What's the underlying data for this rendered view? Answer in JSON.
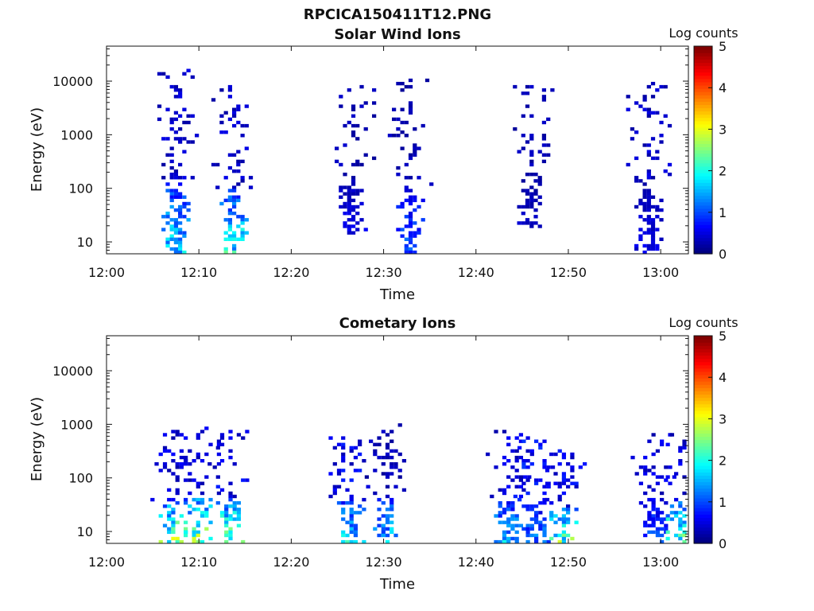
{
  "figure": {
    "title": "RPCICA150411T12.PNG"
  },
  "chart_data": [
    {
      "type": "heatmap",
      "title": "Solar Wind Ions",
      "xlabel": "Time",
      "ylabel": "Energy (eV)",
      "yscale": "log",
      "xlim": [
        "12:00",
        "13:03"
      ],
      "ylim": [
        6,
        45000
      ],
      "x_ticks": [
        "12:00",
        "12:10",
        "12:20",
        "12:30",
        "12:40",
        "12:50",
        "13:00"
      ],
      "y_ticks": [
        "10",
        "100",
        "1000",
        "10000"
      ],
      "colorbar": {
        "label": "Log counts",
        "range": [
          0,
          5
        ],
        "ticks": [
          "0",
          "1",
          "2",
          "3",
          "4",
          "5"
        ],
        "colormap": "jet"
      },
      "bursts": [
        {
          "t_min": 7.3,
          "e_min": 6.5,
          "e_max": 18000,
          "lo_level": 2.0,
          "sparse_level": 0.4
        },
        {
          "t_min": 13.6,
          "e_min": 6.5,
          "e_max": 9000,
          "lo_level": 2.2,
          "sparse_level": 0.4
        },
        {
          "t_min": 26.5,
          "e_min": 15,
          "e_max": 9000,
          "lo_level": 0.6,
          "sparse_level": 0.3
        },
        {
          "t_min": 32.7,
          "e_min": 6.5,
          "e_max": 12000,
          "lo_level": 1.2,
          "sparse_level": 0.3
        },
        {
          "t_min": 45.8,
          "e_min": 20,
          "e_max": 9000,
          "lo_level": 0.4,
          "sparse_level": 0.3
        },
        {
          "t_min": 58.5,
          "e_min": 6.5,
          "e_max": 10000,
          "lo_level": 0.6,
          "sparse_level": 0.4
        }
      ]
    },
    {
      "type": "heatmap",
      "title": "Cometary Ions",
      "xlabel": "Time",
      "ylabel": "Energy (eV)",
      "yscale": "log",
      "xlim": [
        "12:00",
        "13:03"
      ],
      "ylim": [
        6,
        45000
      ],
      "x_ticks": [
        "12:00",
        "12:10",
        "12:20",
        "12:30",
        "12:40",
        "12:50",
        "13:00"
      ],
      "y_ticks": [
        "10",
        "100",
        "1000",
        "10000"
      ],
      "colorbar": {
        "label": "Log counts",
        "range": [
          0,
          5
        ],
        "ticks": [
          "0",
          "1",
          "2",
          "3",
          "4",
          "5"
        ],
        "colormap": "jet"
      },
      "bursts": [
        {
          "t_min": 7.0,
          "e_min": 6.5,
          "e_max": 800,
          "lo_level": 2.9,
          "sparse_level": 0.5
        },
        {
          "t_min": 9.7,
          "e_min": 6.5,
          "e_max": 1000,
          "lo_level": 3.0,
          "sparse_level": 0.5
        },
        {
          "t_min": 13.2,
          "e_min": 6.5,
          "e_max": 900,
          "lo_level": 2.8,
          "sparse_level": 0.6
        },
        {
          "t_min": 26.3,
          "e_min": 6.5,
          "e_max": 700,
          "lo_level": 2.0,
          "sparse_level": 0.6
        },
        {
          "t_min": 30.2,
          "e_min": 6.5,
          "e_max": 1100,
          "lo_level": 1.9,
          "sparse_level": 0.3
        },
        {
          "t_min": 43.3,
          "e_min": 6.5,
          "e_max": 800,
          "lo_level": 1.8,
          "sparse_level": 0.5
        },
        {
          "t_min": 46.3,
          "e_min": 6.5,
          "e_max": 600,
          "lo_level": 1.4,
          "sparse_level": 0.7
        },
        {
          "t_min": 49.3,
          "e_min": 6.5,
          "e_max": 350,
          "lo_level": 2.6,
          "sparse_level": 0.6
        },
        {
          "t_min": 59.0,
          "e_min": 6.5,
          "e_max": 900,
          "lo_level": 1.2,
          "sparse_level": 0.5
        },
        {
          "t_min": 61.9,
          "e_min": 6.5,
          "e_max": 700,
          "lo_level": 2.7,
          "sparse_level": 0.5
        }
      ]
    }
  ]
}
